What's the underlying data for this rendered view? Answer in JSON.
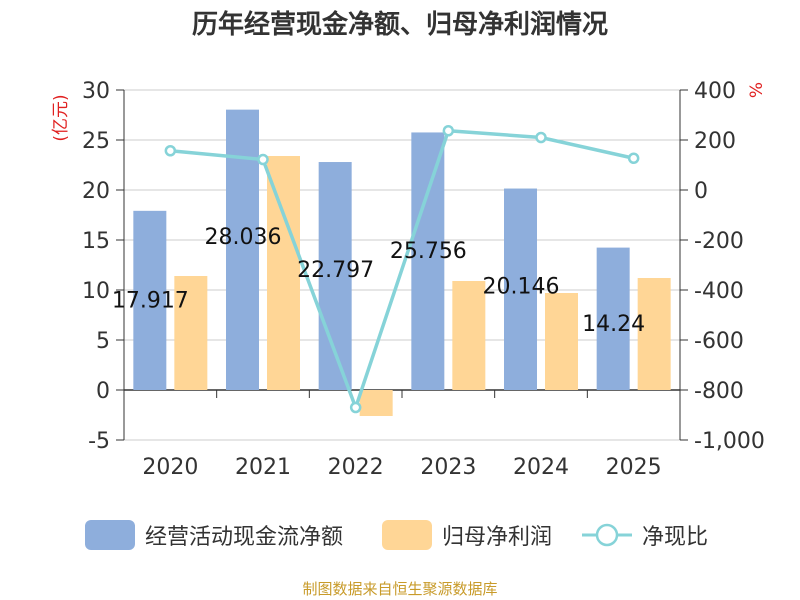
{
  "title": "历年经营现金净额、归母净利润情况",
  "source": "制图数据来自恒生聚源数据库",
  "colors": {
    "cash": "#8eaedc",
    "profit": "#ffd696",
    "ratio": "#86d3d8",
    "unit": "#e02020"
  },
  "chart_data": {
    "type": "bar",
    "categories": [
      "2020",
      "2021",
      "2022",
      "2023",
      "2024",
      "2025"
    ],
    "series": [
      {
        "name": "经营活动现金流净额",
        "type": "bar",
        "axis": "left",
        "values": [
          17.917,
          28.036,
          22.797,
          25.756,
          20.146,
          14.24
        ],
        "labels": [
          "17.917",
          "28.036",
          "22.797",
          "25.756",
          "20.146",
          "14.24"
        ]
      },
      {
        "name": "归母净利润",
        "type": "bar",
        "axis": "left",
        "values": [
          11.4,
          23.4,
          -2.6,
          10.9,
          9.7,
          11.2
        ]
      },
      {
        "name": "净现比",
        "type": "line",
        "axis": "right",
        "values": [
          157,
          122,
          -870,
          237,
          210,
          127
        ]
      }
    ],
    "left_axis": {
      "label": "(亿元)",
      "min": -5,
      "max": 30,
      "ticks": [
        "-5",
        "0",
        "5",
        "10",
        "15",
        "20",
        "25",
        "30"
      ]
    },
    "right_axis": {
      "label": "%",
      "min": -1000,
      "max": 400,
      "ticks": [
        "-1,000",
        "-800",
        "-600",
        "-400",
        "-200",
        "0",
        "200",
        "400"
      ]
    },
    "grid": true,
    "legend_position": "bottom"
  }
}
